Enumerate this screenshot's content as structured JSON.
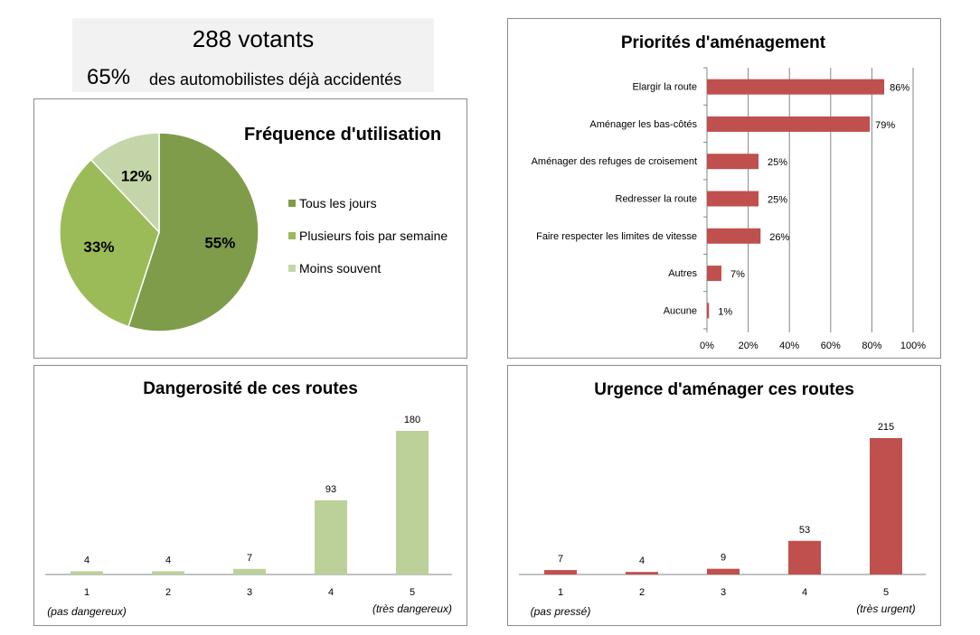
{
  "summary": {
    "votants": "288 votants",
    "pct": "65%",
    "pct_label": "des automobilistes déjà accidentés"
  },
  "chart_data": [
    {
      "type": "pie",
      "title": "Fréquence d'utilisation",
      "categories": [
        "Tous les jours",
        "Plusieurs fois par semaine",
        "Moins souvent"
      ],
      "values": [
        55,
        33,
        12
      ],
      "labels": [
        "55%",
        "33%",
        "12%"
      ],
      "colors": [
        "#7f9c4a",
        "#9bbb59",
        "#c4d6a9"
      ],
      "legend": "right"
    },
    {
      "type": "bar",
      "orientation": "horizontal",
      "title": "Priorités d'aménagement",
      "categories": [
        "Elargir la route",
        "Aménager les bas-côtés",
        "Aménager des refuges de croisement",
        "Redresser la route",
        "Faire respecter les limites de vitesse",
        "Autres",
        "Aucune"
      ],
      "values": [
        86,
        79,
        25,
        25,
        26,
        7,
        1
      ],
      "labels": [
        "86%",
        "79%",
        "25%",
        "25%",
        "26%",
        "7%",
        "1%"
      ],
      "xlim": [
        0,
        100
      ],
      "xticks": [
        "0%",
        "20%",
        "40%",
        "60%",
        "80%",
        "100%"
      ],
      "grid": true,
      "color": "#c0504d"
    },
    {
      "type": "bar",
      "title": "Dangerosité de ces routes",
      "categories": [
        "1",
        "2",
        "3",
        "4",
        "5"
      ],
      "values": [
        4,
        4,
        7,
        93,
        180
      ],
      "labels": [
        "4",
        "4",
        "7",
        "93",
        "180"
      ],
      "low_label": "(pas dangereux)",
      "high_label": "(très dangereux)",
      "ylim": [
        0,
        180
      ],
      "color": "#bcd19a"
    },
    {
      "type": "bar",
      "title": "Urgence d'aménager ces routes",
      "categories": [
        "1",
        "2",
        "3",
        "4",
        "5"
      ],
      "values": [
        7,
        4,
        9,
        53,
        215
      ],
      "labels": [
        "7",
        "4",
        "9",
        "53",
        "215"
      ],
      "low_label": "(pas pressé)",
      "high_label": "(très urgent)",
      "ylim": [
        0,
        215
      ],
      "color": "#c0504d"
    }
  ]
}
